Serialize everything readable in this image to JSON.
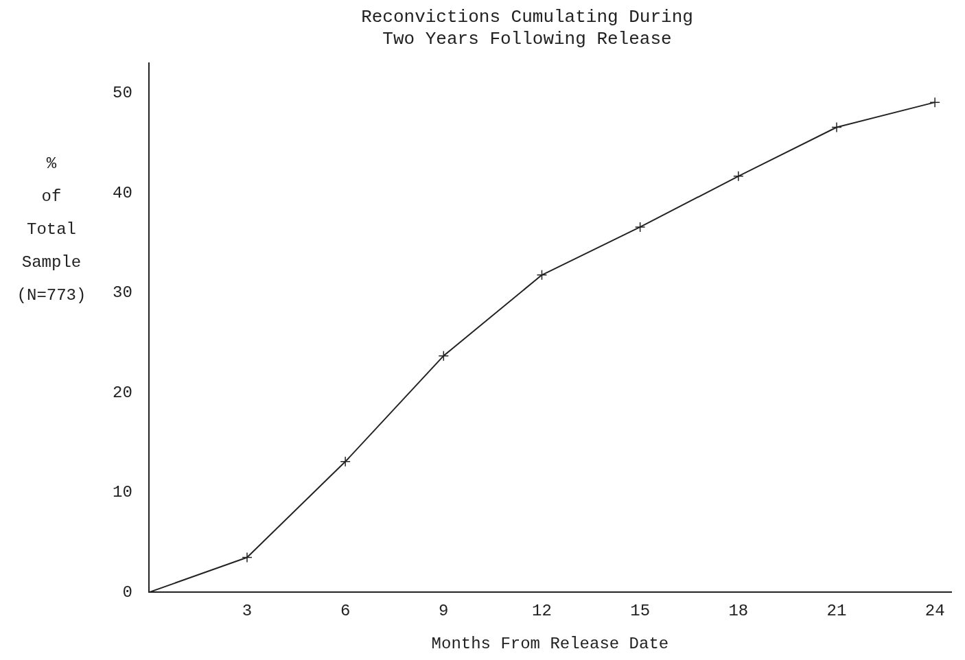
{
  "chart_data": {
    "type": "line",
    "title": "Reconvictions Cumulating During\nTwo Years Following Release",
    "xlabel": "Months From Release Date",
    "ylabel": "%\nof\nTotal\nSample\n(N=773)",
    "x": [
      0,
      3,
      6,
      9,
      12,
      15,
      18,
      21,
      24
    ],
    "series": [
      {
        "color": "#222222",
        "values": [
          0,
          3.5,
          13.1,
          23.7,
          31.8,
          36.6,
          41.7,
          46.6,
          49.1
        ]
      }
    ],
    "xlim": [
      0,
      24.5
    ],
    "xticks": [
      3,
      6,
      9,
      12,
      15,
      18,
      21,
      24
    ],
    "ylim": [
      0,
      53
    ],
    "yticks": [
      0,
      10,
      20,
      30,
      40,
      50
    ],
    "grid": false,
    "legend": false,
    "marker": "cross",
    "line_style": "solid"
  }
}
